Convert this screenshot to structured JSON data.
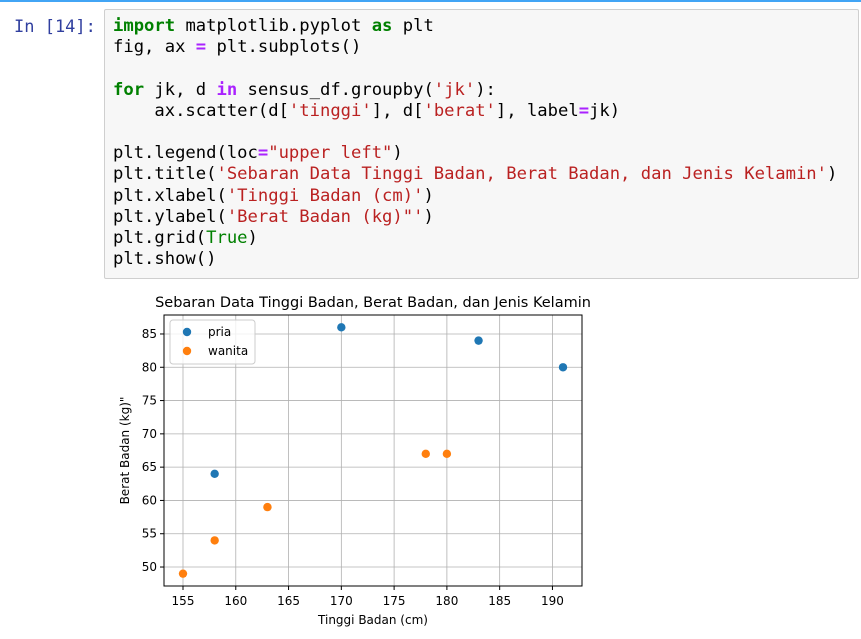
{
  "prompt": "In [14]:",
  "code_lines": [
    [
      {
        "t": "kw",
        "v": "import"
      },
      {
        "t": "",
        "v": " matplotlib.pyplot "
      },
      {
        "t": "kw",
        "v": "as"
      },
      {
        "t": "",
        "v": " plt"
      }
    ],
    [
      {
        "t": "",
        "v": "fig, ax "
      },
      {
        "t": "op",
        "v": "="
      },
      {
        "t": "",
        "v": " plt.subplots()"
      }
    ],
    [],
    [
      {
        "t": "kw",
        "v": "for"
      },
      {
        "t": "",
        "v": " jk, d "
      },
      {
        "t": "op",
        "v": "in"
      },
      {
        "t": "",
        "v": " sensus_df.groupby("
      },
      {
        "t": "str",
        "v": "'jk'"
      },
      {
        "t": "",
        "v": "):"
      }
    ],
    [
      {
        "t": "",
        "v": "    ax.scatter(d["
      },
      {
        "t": "str",
        "v": "'tinggi'"
      },
      {
        "t": "",
        "v": "], d["
      },
      {
        "t": "str",
        "v": "'berat'"
      },
      {
        "t": "",
        "v": "], label"
      },
      {
        "t": "op",
        "v": "="
      },
      {
        "t": "",
        "v": "jk)"
      }
    ],
    [],
    [
      {
        "t": "",
        "v": "plt.legend(loc"
      },
      {
        "t": "op",
        "v": "="
      },
      {
        "t": "str",
        "v": "\"upper left\""
      },
      {
        "t": "",
        "v": ")"
      }
    ],
    [
      {
        "t": "",
        "v": "plt.title("
      },
      {
        "t": "str",
        "v": "'Sebaran Data Tinggi Badan, Berat Badan, dan Jenis Kelamin'"
      },
      {
        "t": "",
        "v": ")"
      }
    ],
    [
      {
        "t": "",
        "v": "plt.xlabel("
      },
      {
        "t": "str",
        "v": "'Tinggi Badan (cm)'"
      },
      {
        "t": "",
        "v": ")"
      }
    ],
    [
      {
        "t": "",
        "v": "plt.ylabel("
      },
      {
        "t": "str",
        "v": "'Berat Badan (kg)\"'"
      },
      {
        "t": "",
        "v": ")"
      }
    ],
    [
      {
        "t": "",
        "v": "plt.grid("
      },
      {
        "t": "bi",
        "v": "True"
      },
      {
        "t": "",
        "v": ")"
      }
    ],
    [
      {
        "t": "",
        "v": "plt.show()"
      }
    ]
  ],
  "chart_data": {
    "type": "scatter",
    "title": "Sebaran Data Tinggi Badan, Berat Badan, dan Jenis Kelamin",
    "xlabel": "Tinggi Badan (cm)",
    "ylabel": "Berat Badan (kg)\"",
    "xlim": [
      153.2,
      192.8
    ],
    "ylim": [
      47.15,
      87.85
    ],
    "xticks": [
      155,
      160,
      165,
      170,
      175,
      180,
      185,
      190
    ],
    "yticks": [
      50,
      55,
      60,
      65,
      70,
      75,
      80,
      85
    ],
    "grid": true,
    "legend": "upper-left",
    "series": [
      {
        "name": "pria",
        "color": "#1f77b4",
        "points": [
          [
            158,
            64
          ],
          [
            170,
            86
          ],
          [
            183,
            84
          ],
          [
            191,
            80
          ]
        ]
      },
      {
        "name": "wanita",
        "color": "#ff7f0e",
        "points": [
          [
            155,
            49
          ],
          [
            158,
            54
          ],
          [
            163,
            59
          ],
          [
            178,
            67
          ],
          [
            180,
            67
          ]
        ]
      }
    ]
  }
}
